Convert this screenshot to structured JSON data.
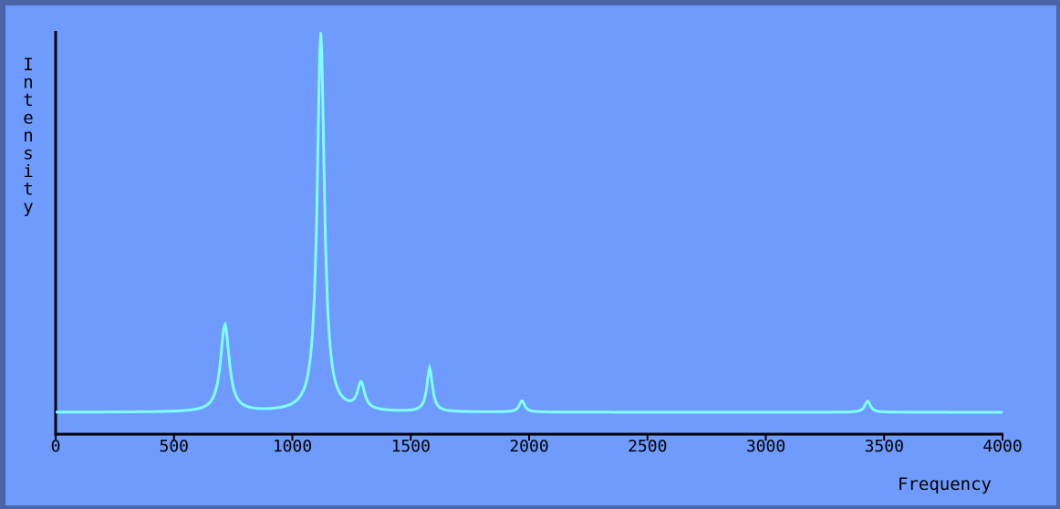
{
  "chart_data": {
    "type": "line",
    "xlabel": "Frequency",
    "ylabel": "Intensity",
    "xlim": [
      0,
      4000
    ],
    "x_ticks": [
      0,
      500,
      1000,
      1500,
      2000,
      2500,
      3000,
      3500,
      4000
    ],
    "x_tick_labels": [
      "0",
      "500",
      "1000",
      "1500",
      "2000",
      "2500",
      "3000",
      "3500",
      "4000"
    ],
    "ylim": [
      0,
      1
    ],
    "grid": false,
    "line_color": "#7fffff",
    "axis_color": "#000000",
    "background_color": "#6f9bff",
    "series": [
      {
        "peaks": [
          {
            "x": 715,
            "height": 0.23
          },
          {
            "x": 1120,
            "height": 1.0
          },
          {
            "x": 1290,
            "height": 0.07
          },
          {
            "x": 1580,
            "height": 0.115
          },
          {
            "x": 1970,
            "height": 0.03
          },
          {
            "x": 3430,
            "height": 0.03
          }
        ],
        "baseline": 0.0
      }
    ]
  }
}
